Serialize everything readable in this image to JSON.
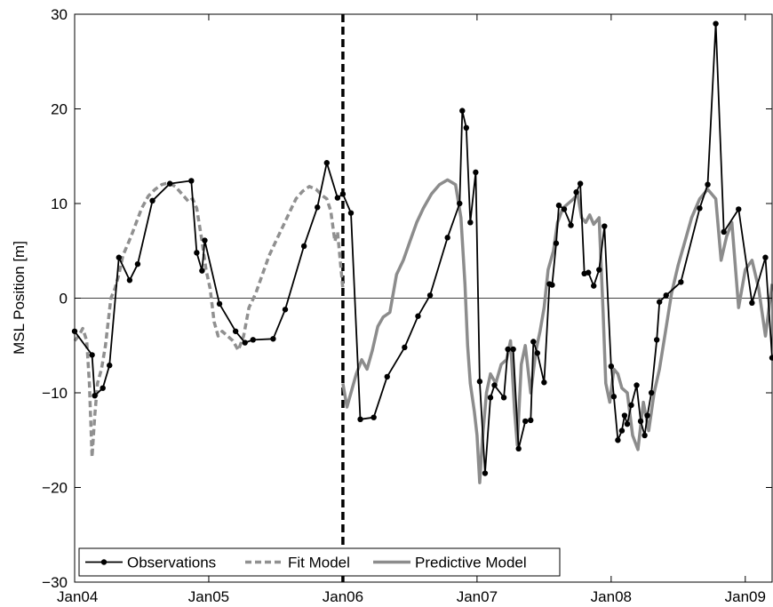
{
  "chart_data": {
    "type": "line",
    "ylabel": "MSL Position [m]",
    "xlabel": "",
    "title": "",
    "ylim": [
      -30,
      30
    ],
    "xlim": [
      2004.0,
      2009.2
    ],
    "yticks": [
      -30,
      -20,
      -10,
      0,
      10,
      20,
      30
    ],
    "ytick_labels": [
      "−30",
      "−20",
      "−10",
      "0",
      "10",
      "20",
      "30"
    ],
    "xticks": [
      2004,
      2005,
      2006,
      2007,
      2008,
      2009
    ],
    "xtick_labels": [
      "Jan04",
      "Jan05",
      "Jan06",
      "Jan07",
      "Jan08",
      "Jan09"
    ],
    "zero_line": 0,
    "vertical_marker_x": 2006.0,
    "legend": {
      "placement": "bottom-left",
      "entries": [
        "Observations",
        "Fit Model",
        "Predictive Model"
      ]
    },
    "series": [
      {
        "name": "Observations",
        "style": "solid-marker",
        "color": "#000000",
        "x": [
          2004.0,
          2004.13,
          2004.15,
          2004.21,
          2004.26,
          2004.33,
          2004.41,
          2004.47,
          2004.58,
          2004.71,
          2004.87,
          2004.91,
          2004.95,
          2004.97,
          2005.08,
          2005.2,
          2005.27,
          2005.33,
          2005.48,
          2005.57,
          2005.71,
          2005.81,
          2005.88,
          2005.96,
          2006.0,
          2006.06,
          2006.13,
          2006.23,
          2006.33,
          2006.46,
          2006.56,
          2006.65,
          2006.78,
          2006.87,
          2006.89,
          2006.92,
          2006.95,
          2006.99,
          2007.02,
          2007.06,
          2007.1,
          2007.13,
          2007.2,
          2007.23,
          2007.27,
          2007.31,
          2007.36,
          2007.4,
          2007.42,
          2007.45,
          2007.5,
          2007.54,
          2007.56,
          2007.59,
          2007.61,
          2007.65,
          2007.7,
          2007.74,
          2007.77,
          2007.8,
          2007.83,
          2007.87,
          2007.91,
          2007.95,
          2008.0,
          2008.02,
          2008.05,
          2008.08,
          2008.1,
          2008.12,
          2008.15,
          2008.19,
          2008.22,
          2008.25,
          2008.27,
          2008.3,
          2008.34,
          2008.36,
          2008.41,
          2008.52,
          2008.66,
          2008.72,
          2008.78,
          2008.84,
          2008.95,
          2009.05,
          2009.15,
          2009.2
        ],
        "y": [
          -3.5,
          -6,
          -10.3,
          -9.5,
          -7.1,
          4.3,
          1.9,
          3.6,
          10.3,
          12.1,
          12.4,
          4.8,
          2.9,
          6.1,
          -0.6,
          -3.5,
          -4.7,
          -4.4,
          -4.3,
          -1.2,
          5.5,
          9.6,
          14.3,
          10.6,
          11.0,
          9.0,
          -12.8,
          -12.6,
          -8.3,
          -5.2,
          -1.9,
          0.3,
          6.4,
          10.0,
          19.8,
          18.0,
          8.0,
          13.3,
          -8.8,
          -18.5,
          -10.5,
          -9.2,
          -10.5,
          -5.4,
          -5.4,
          -15.9,
          -13.0,
          -12.9,
          -4.6,
          -5.8,
          -8.9,
          1.5,
          1.4,
          5.8,
          9.8,
          9.4,
          7.7,
          11.2,
          12.1,
          2.6,
          2.7,
          1.3,
          3.0,
          7.6,
          -7.2,
          -10.4,
          -15.0,
          -14.0,
          -12.4,
          -13.3,
          -11.3,
          -9.2,
          -13.0,
          -14.5,
          -12.4,
          -10.0,
          -4.4,
          -0.4,
          0.3,
          1.7,
          9.5,
          12.0,
          29.0,
          7.0,
          9.4,
          -0.5,
          4.3,
          -6.3
        ]
      },
      {
        "name": "Fit Model",
        "style": "dashed",
        "color": "#909090",
        "x": [
          2004.0,
          2004.03,
          2004.06,
          2004.09,
          2004.11,
          2004.13,
          2004.15,
          2004.17,
          2004.2,
          2004.23,
          2004.27,
          2004.3,
          2004.33,
          2004.36,
          2004.39,
          2004.42,
          2004.46,
          2004.5,
          2004.55,
          2004.6,
          2004.65,
          2004.7,
          2004.75,
          2004.8,
          2004.85,
          2004.88,
          2004.91,
          2004.95,
          2004.98,
          2005.01,
          2005.04,
          2005.07,
          2005.1,
          2005.14,
          2005.18,
          2005.22,
          2005.26,
          2005.3,
          2005.35,
          2005.4,
          2005.45,
          2005.5,
          2005.55,
          2005.6,
          2005.65,
          2005.7,
          2005.75,
          2005.8,
          2005.85,
          2005.88,
          2005.91,
          2005.94,
          2005.96,
          2005.98,
          2006.0
        ],
        "y": [
          -4.5,
          -4.0,
          -3.2,
          -4.5,
          -9.0,
          -16.8,
          -12.5,
          -9.0,
          -7.5,
          -5.0,
          0.0,
          1.0,
          2.5,
          4.5,
          5.5,
          6.5,
          8.0,
          9.5,
          10.8,
          11.5,
          12.0,
          12.2,
          11.8,
          11.0,
          10.2,
          10.5,
          9.5,
          6.0,
          3.0,
          1.0,
          -2.5,
          -4.0,
          -3.5,
          -4.0,
          -4.5,
          -5.5,
          -4.0,
          -1.0,
          0.5,
          2.5,
          4.5,
          6.0,
          7.5,
          9.0,
          10.5,
          11.3,
          11.8,
          11.5,
          10.8,
          10.5,
          9.2,
          6.0,
          7.0,
          4.0,
          1.0
        ]
      },
      {
        "name": "Predictive Model",
        "style": "solid",
        "color": "#8c8c8c",
        "x": [
          2006.0,
          2006.03,
          2006.06,
          2006.1,
          2006.14,
          2006.18,
          2006.22,
          2006.26,
          2006.3,
          2006.35,
          2006.4,
          2006.45,
          2006.5,
          2006.55,
          2006.6,
          2006.66,
          2006.72,
          2006.78,
          2006.84,
          2006.88,
          2006.91,
          2006.93,
          2006.95,
          2006.98,
          2007.0,
          2007.02,
          2007.04,
          2007.07,
          2007.1,
          2007.14,
          2007.18,
          2007.22,
          2007.25,
          2007.28,
          2007.3,
          2007.33,
          2007.36,
          2007.4,
          2007.44,
          2007.47,
          2007.5,
          2007.53,
          2007.57,
          2007.6,
          2007.64,
          2007.68,
          2007.72,
          2007.75,
          2007.78,
          2007.81,
          2007.84,
          2007.87,
          2007.91,
          2007.94,
          2007.96,
          2007.99,
          2008.02,
          2008.05,
          2008.08,
          2008.12,
          2008.16,
          2008.2,
          2008.24,
          2008.28,
          2008.32,
          2008.36,
          2008.4,
          2008.45,
          2008.5,
          2008.55,
          2008.6,
          2008.66,
          2008.72,
          2008.78,
          2008.82,
          2008.86,
          2008.9,
          2008.95,
          2009.0,
          2009.05,
          2009.1,
          2009.15,
          2009.2
        ],
        "y": [
          -9.0,
          -11.5,
          -10.0,
          -8.0,
          -6.5,
          -7.5,
          -5.5,
          -3.0,
          -2.0,
          -1.5,
          2.5,
          4.0,
          6.0,
          8.0,
          9.5,
          11.0,
          12.0,
          12.5,
          12.0,
          8.5,
          1.5,
          -5.0,
          -9.0,
          -12.0,
          -14.5,
          -19.5,
          -15.0,
          -10.0,
          -8.0,
          -9.0,
          -7.0,
          -6.5,
          -4.5,
          -12.0,
          -15.5,
          -7.0,
          -5.0,
          -10.0,
          -5.5,
          -3.5,
          -1.0,
          3.0,
          5.0,
          8.0,
          9.5,
          10.0,
          10.5,
          11.0,
          8.5,
          8.0,
          8.8,
          7.8,
          8.5,
          -1.5,
          -9.0,
          -11.0,
          -7.5,
          -8.0,
          -9.5,
          -10.0,
          -14.5,
          -16.0,
          -11.0,
          -14.0,
          -10.0,
          -7.5,
          -4.0,
          0.5,
          3.5,
          6.0,
          8.5,
          10.5,
          11.5,
          10.5,
          4.0,
          6.5,
          8.0,
          -1.0,
          3.0,
          4.0,
          1.0,
          -4.0,
          1.5
        ]
      }
    ]
  }
}
